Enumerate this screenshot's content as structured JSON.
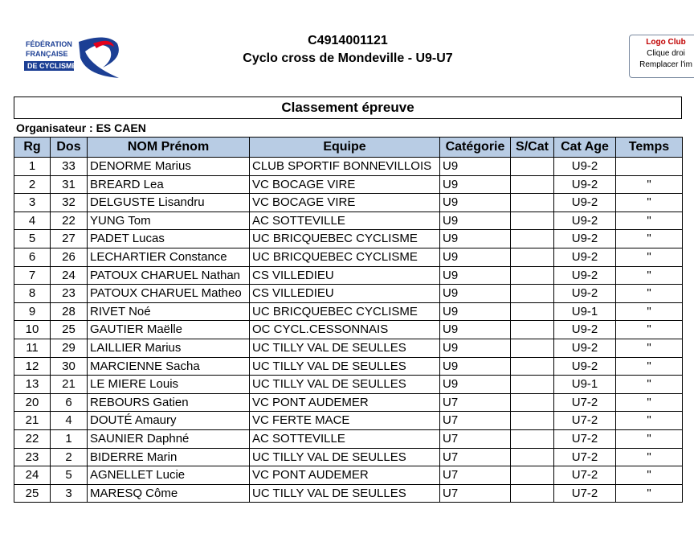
{
  "header": {
    "logo": [
      "FÉDÉRATION",
      "FRANÇAISE",
      "DE CYCLISME"
    ],
    "code": "C4914001121",
    "title": "Cyclo cross de Mondeville - U9-U7",
    "club_logo": [
      "Logo Club",
      "Clique droi",
      "Remplacer l'im"
    ]
  },
  "table": {
    "title": "Classement épreuve",
    "organizer": "Organisateur : ES CAEN",
    "columns": [
      "Rg",
      "Dos",
      "NOM Prénom",
      "Equipe",
      "Catégorie",
      "S/Cat",
      "Cat Age",
      "Temps"
    ],
    "rows": [
      [
        1,
        33,
        "DENORME Marius",
        "CLUB SPORTIF BONNEVILLOIS",
        "U9",
        null,
        "U9-2",
        null
      ],
      [
        2,
        31,
        "BREARD Lea",
        "VC BOCAGE VIRE",
        "U9",
        null,
        "U9-2",
        "\""
      ],
      [
        3,
        32,
        "DELGUSTE Lisandru",
        "VC BOCAGE VIRE",
        "U9",
        null,
        "U9-2",
        "\""
      ],
      [
        4,
        22,
        "YUNG Tom",
        "AC SOTTEVILLE",
        "U9",
        null,
        "U9-2",
        "\""
      ],
      [
        5,
        27,
        "PADET Lucas",
        "UC BRICQUEBEC CYCLISME",
        "U9",
        null,
        "U9-2",
        "\""
      ],
      [
        6,
        26,
        "LECHARTIER Constance",
        "UC BRICQUEBEC CYCLISME",
        "U9",
        null,
        "U9-2",
        "\""
      ],
      [
        7,
        24,
        "PATOUX CHARUEL Nathan",
        "CS VILLEDIEU",
        "U9",
        null,
        "U9-2",
        "\""
      ],
      [
        8,
        23,
        "PATOUX CHARUEL Matheo",
        "CS VILLEDIEU",
        "U9",
        null,
        "U9-2",
        "\""
      ],
      [
        9,
        28,
        "RIVET Noé",
        "UC BRICQUEBEC CYCLISME",
        "U9",
        null,
        "U9-1",
        "\""
      ],
      [
        10,
        25,
        "GAUTIER Maëlle",
        "OC CYCL.CESSONNAIS",
        "U9",
        null,
        "U9-2",
        "\""
      ],
      [
        11,
        29,
        "LAILLIER Marius",
        "UC TILLY VAL DE SEULLES",
        "U9",
        null,
        "U9-2",
        "\""
      ],
      [
        12,
        30,
        "MARCIENNE Sacha",
        "UC TILLY VAL DE SEULLES",
        "U9",
        null,
        "U9-2",
        "\""
      ],
      [
        13,
        21,
        "LE MIERE Louis",
        "UC TILLY VAL DE SEULLES",
        "U9",
        null,
        "U9-1",
        "\""
      ],
      [
        20,
        6,
        "REBOURS Gatien",
        "VC PONT AUDEMER",
        "U7",
        null,
        "U7-2",
        "\""
      ],
      [
        21,
        4,
        "DOUTÉ Amaury",
        "VC FERTE MACE",
        "U7",
        null,
        "U7-2",
        "\""
      ],
      [
        22,
        1,
        "SAUNIER Daphné",
        "AC SOTTEVILLE",
        "U7",
        null,
        "U7-2",
        "\""
      ],
      [
        23,
        2,
        "BIDERRE Marin",
        "UC TILLY VAL DE SEULLES",
        "U7",
        null,
        "U7-2",
        "\""
      ],
      [
        24,
        5,
        "AGNELLET Lucie",
        "VC PONT AUDEMER",
        "U7",
        null,
        "U7-2",
        "\""
      ],
      [
        25,
        3,
        "MARESQ Côme",
        "UC TILLY VAL DE SEULLES",
        "U7",
        null,
        "U7-2",
        "\""
      ]
    ]
  }
}
